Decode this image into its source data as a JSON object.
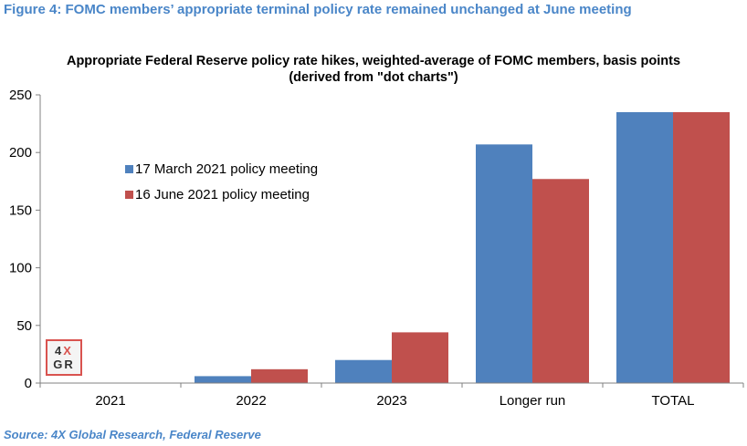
{
  "figure": {
    "heading": "Figure 4: FOMC members’ appropriate terminal policy rate remained unchanged at June meeting",
    "source": "Source: 4X Global Research, Federal Reserve"
  },
  "logo": {
    "line1_a": "4",
    "line1_b": "X",
    "line2_a": "G",
    "line2_b": "R",
    "colors": {
      "dark": "#333333",
      "red": "#d9534f"
    }
  },
  "chart_data": {
    "type": "bar",
    "title": "Appropriate Federal Reserve  policy rate hikes, weighted-average  of FOMC members, basis points",
    "subtitle": "(derived from \"dot charts\")",
    "xlabel": "",
    "ylabel": "",
    "categories": [
      "2021",
      "2022",
      "2023",
      "Longer run",
      "TOTAL"
    ],
    "series": [
      {
        "name": "17 March 2021  policy meeting",
        "color": "#4f81bd",
        "values": [
          0,
          6,
          20,
          207,
          235
        ]
      },
      {
        "name": "16 June 2021  policy meeting",
        "color": "#c0504d",
        "values": [
          0,
          12,
          44,
          177,
          235
        ]
      }
    ],
    "ylim": [
      0,
      250
    ],
    "yticks": [
      0,
      50,
      100,
      150,
      200,
      250
    ],
    "grid": false,
    "legend_position": "upper-left inside plot"
  }
}
